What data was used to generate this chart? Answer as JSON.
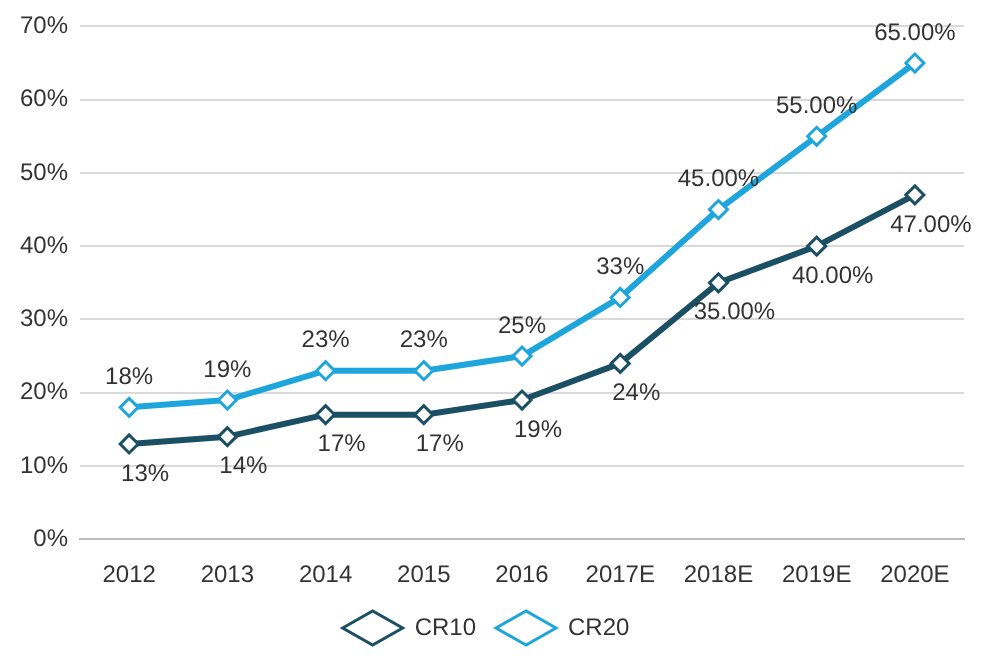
{
  "chart_data": {
    "type": "line",
    "categories": [
      "2012",
      "2013",
      "2014",
      "2015",
      "2016",
      "2017E",
      "2018E",
      "2019E",
      "2020E"
    ],
    "series": [
      {
        "name": "CR10",
        "color": "#1b4f63",
        "values": [
          13,
          14,
          17,
          17,
          19,
          24,
          35,
          40,
          47
        ],
        "value_labels": [
          "13%",
          "14%",
          "17%",
          "17%",
          "19%",
          "24%",
          "35.00%",
          "40.00%",
          "47.00%"
        ]
      },
      {
        "name": "CR20",
        "color": "#1ea6dc",
        "values": [
          18,
          19,
          23,
          23,
          25,
          33,
          45,
          55,
          65
        ],
        "value_labels": [
          "18%",
          "19%",
          "23%",
          "23%",
          "25%",
          "33%",
          "45.00%",
          "55.00%",
          "65.00%"
        ]
      }
    ],
    "ylim": [
      0,
      70
    ],
    "yticks": [
      {
        "value": 0,
        "label": "0%"
      },
      {
        "value": 10,
        "label": "10%"
      },
      {
        "value": 20,
        "label": "20%"
      },
      {
        "value": 30,
        "label": "30%"
      },
      {
        "value": 40,
        "label": "40%"
      },
      {
        "value": 50,
        "label": "50%"
      },
      {
        "value": 60,
        "label": "60%"
      },
      {
        "value": 70,
        "label": "70%"
      }
    ],
    "grid": "y",
    "legend": "bottom",
    "marker": "diamond",
    "line_style": "solid"
  }
}
